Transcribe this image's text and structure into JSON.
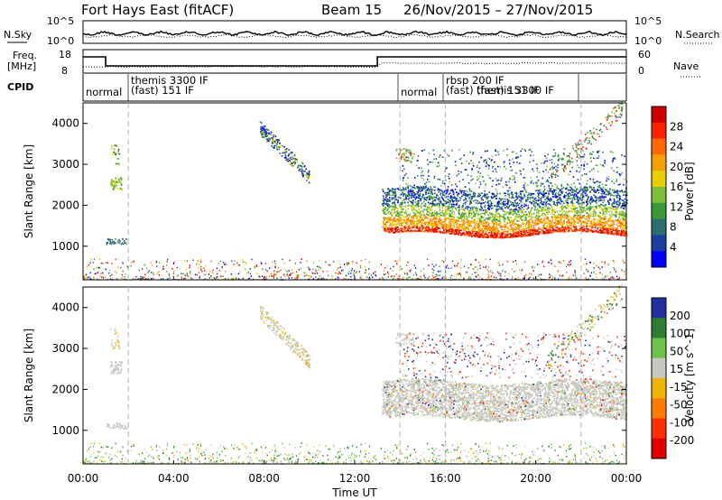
{
  "header": {
    "station": "Fort Hays East (fitACF)",
    "beam": "Beam 15",
    "date_range": "26/Nov/2015 – 27/Nov/2015"
  },
  "panels": {
    "nsky": {
      "left_label": "N.Sky",
      "right_label": "N.Search",
      "left_ticks": [
        "10^5",
        "10^0"
      ],
      "right_ticks": [
        "10^5",
        "10^0"
      ]
    },
    "freq": {
      "left_label_1": "Freq.",
      "left_label_2": "[MHz]",
      "right_label": "Nave",
      "left_ticks": [
        "18",
        "8"
      ],
      "right_ticks": [
        "60",
        "0"
      ]
    },
    "cpid": {
      "label": "CPID",
      "modes": [
        {
          "name": "normal",
          "start": 0.0,
          "end": 2.0
        },
        {
          "name": "themis 3300 IF (fast) 151 IF",
          "start": 2.0,
          "end": 14.0
        },
        {
          "name": "normal",
          "start": 14.0,
          "end": 16.0
        },
        {
          "name": "rbsp 200 IF (fast) 151 IF",
          "start": 16.0,
          "end": 22.0
        }
      ],
      "extra_labels": [
        "themis 3300 IF",
        "(fast)  151 IF",
        "normal",
        "rbsp 200 IF",
        "(fast)",
        "themis 3300 IF",
        "(fast)  151 IF"
      ]
    }
  },
  "chart_data": [
    {
      "type": "heatmap",
      "title": "Power",
      "ylabel": "Slant Range [km]",
      "colorbar_label": "Power [dB]",
      "colorbar_ticks": [
        "28",
        "24",
        "20",
        "16",
        "12",
        "8",
        "4"
      ],
      "ylim": [
        180,
        4500
      ],
      "yticks": [
        "1000",
        "2000",
        "3000",
        "4000"
      ],
      "colors": [
        "#0000ff",
        "#1a3fa0",
        "#2e6e6e",
        "#3a9a3a",
        "#7bbf3a",
        "#e8d000",
        "#f5a000",
        "#ff6a00",
        "#ff2000",
        "#d00000"
      ]
    },
    {
      "type": "heatmap",
      "title": "Velocity",
      "ylabel": "Slant Range [km]",
      "colorbar_label": "Velocity [m s^-1]",
      "colorbar_ticks": [
        "200",
        "100",
        "50",
        "15",
        "-15",
        "-50",
        "-100",
        "-200"
      ],
      "ylim": [
        180,
        4500
      ],
      "yticks": [
        "1000",
        "2000",
        "3000",
        "4000"
      ],
      "colors": [
        "#2030a0",
        "#2e7d32",
        "#6cc24a",
        "#c8c8c0",
        "#f0b400",
        "#ff7a00",
        "#ff3000",
        "#e00000"
      ]
    }
  ],
  "xaxis": {
    "label": "Time UT",
    "ticks": [
      "00:00",
      "04:00",
      "08:00",
      "12:00",
      "16:00",
      "20:00",
      "00:00"
    ],
    "range_hours": [
      0,
      24
    ]
  },
  "colors": {
    "grid_dash": "#b0b0b0",
    "axis": "#000000"
  }
}
